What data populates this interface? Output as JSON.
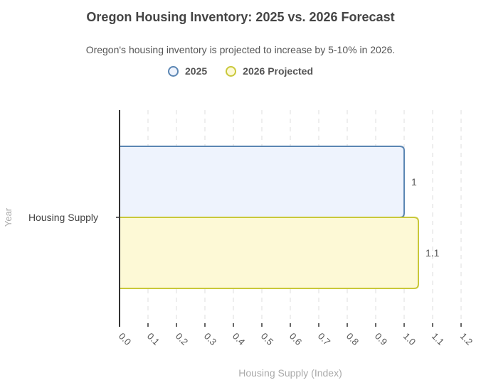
{
  "chart_data": {
    "type": "bar",
    "orientation": "horizontal",
    "title": "Oregon Housing Inventory: 2025 vs. 2026 Forecast",
    "subtitle": "Oregon's housing inventory is projected to increase by 5-10% in 2026.",
    "xlabel": "Housing Supply (Index)",
    "ylabel": "Year",
    "categories": [
      "Housing Supply"
    ],
    "xlim": [
      0,
      1.2
    ],
    "xticks": [
      "0.0",
      "0.1",
      "0.2",
      "0.3",
      "0.4",
      "0.5",
      "0.6",
      "0.7",
      "0.8",
      "0.9",
      "1.0",
      "1.1",
      "1.2"
    ],
    "grid": true,
    "legend_position": "top",
    "series": [
      {
        "name": "2025",
        "values": [
          1.0
        ],
        "data_labels": [
          "1"
        ],
        "stroke": "#5b86b3",
        "fill": "#eef3fd"
      },
      {
        "name": "2026 Projected",
        "values": [
          1.05
        ],
        "data_labels": [
          "1.1"
        ],
        "stroke": "#c9c83a",
        "fill": "#fdf9d6"
      }
    ]
  }
}
